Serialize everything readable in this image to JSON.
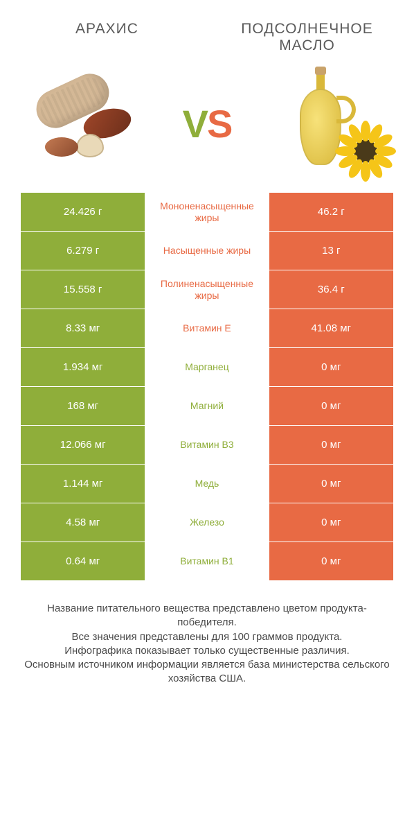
{
  "colors": {
    "green": "#8fae3a",
    "orange": "#e86a44",
    "white": "#ffffff"
  },
  "header": {
    "left_title": "АРАХИС",
    "right_title": "ПОДСОЛНЕЧНОЕ МАСЛО",
    "vs_v": "V",
    "vs_s": "S"
  },
  "rows": [
    {
      "left": "24.426 г",
      "label": "Мононенасыщенные жиры",
      "right": "46.2 г",
      "winner": "right"
    },
    {
      "left": "6.279 г",
      "label": "Насыщенные жиры",
      "right": "13 г",
      "winner": "right"
    },
    {
      "left": "15.558 г",
      "label": "Полиненасыщенные жиры",
      "right": "36.4 г",
      "winner": "right"
    },
    {
      "left": "8.33 мг",
      "label": "Витамин E",
      "right": "41.08 мг",
      "winner": "right"
    },
    {
      "left": "1.934 мг",
      "label": "Марганец",
      "right": "0 мг",
      "winner": "left"
    },
    {
      "left": "168 мг",
      "label": "Магний",
      "right": "0 мг",
      "winner": "left"
    },
    {
      "left": "12.066 мг",
      "label": "Витамин B3",
      "right": "0 мг",
      "winner": "left"
    },
    {
      "left": "1.144 мг",
      "label": "Медь",
      "right": "0 мг",
      "winner": "left"
    },
    {
      "left": "4.58 мг",
      "label": "Железо",
      "right": "0 мг",
      "winner": "left"
    },
    {
      "left": "0.64 мг",
      "label": "Витамин B1",
      "right": "0 мг",
      "winner": "left"
    }
  ],
  "footer": {
    "line1": "Название питательного вещества представлено цветом продукта-победителя.",
    "line2": "Все значения представлены для 100 граммов продукта.",
    "line3": "Инфографика показывает только существенные различия.",
    "line4": "Основным источником информации является база министерства сельского хозяйства США."
  }
}
